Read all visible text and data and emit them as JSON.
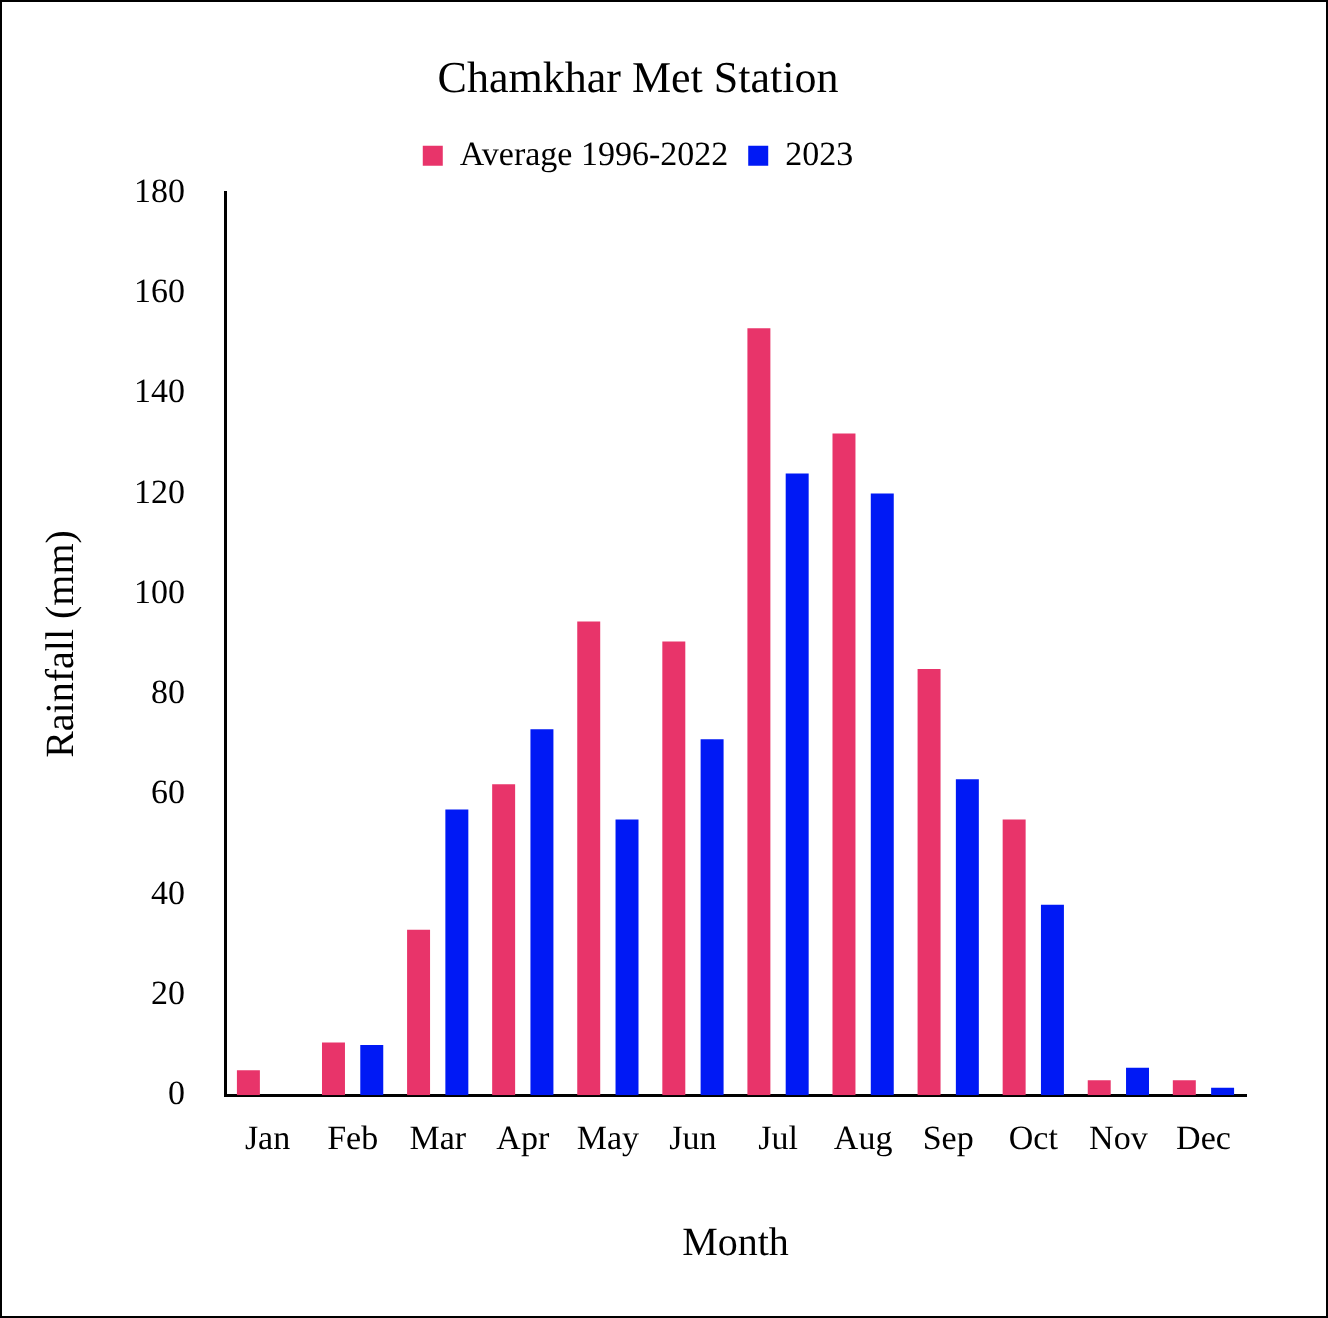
{
  "chart_data": {
    "type": "bar",
    "title": "Chamkhar Met Station",
    "xlabel": "Month",
    "ylabel": "Rainfall (mm)",
    "categories": [
      "Jan",
      "Feb",
      "Mar",
      "Apr",
      "May",
      "Jun",
      "Jul",
      "Aug",
      "Sep",
      "Oct",
      "Nov",
      "Dec"
    ],
    "series": [
      {
        "name": "Average 1996-2022",
        "color": "#e8346a",
        "values": [
          5,
          10.5,
          33,
          62,
          94.5,
          90.5,
          153,
          132,
          85,
          55,
          3,
          3
        ]
      },
      {
        "name": "2023",
        "color": "#0019f5",
        "values": [
          0,
          10,
          57,
          73,
          55,
          71,
          124,
          120,
          63,
          38,
          5.5,
          1.5
        ]
      }
    ],
    "ylim": [
      0,
      180
    ],
    "yticks": [
      0,
      20,
      40,
      60,
      80,
      100,
      120,
      140,
      160,
      180
    ],
    "grid": false,
    "legend": "top"
  }
}
